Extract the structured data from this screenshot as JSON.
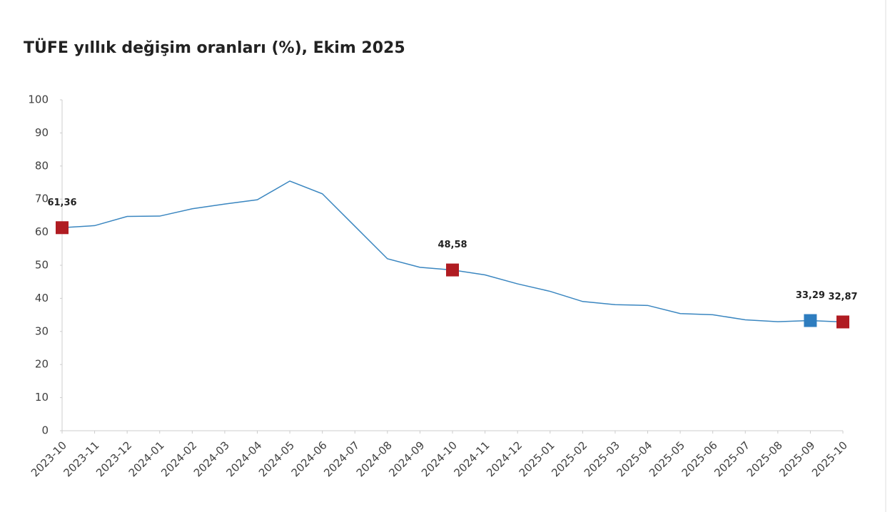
{
  "chart_data": {
    "type": "line",
    "title": "TÜFE yıllık değişim oranları (%), Ekim 2025",
    "categories": [
      "2023-10",
      "2023-11",
      "2023-12",
      "2024-01",
      "2024-02",
      "2024-03",
      "2024-04",
      "2024-05",
      "2024-06",
      "2024-07",
      "2024-08",
      "2024-09",
      "2024-10",
      "2024-11",
      "2024-12",
      "2025-01",
      "2025-02",
      "2025-03",
      "2025-04",
      "2025-05",
      "2025-06",
      "2025-07",
      "2025-08",
      "2025-09",
      "2025-10"
    ],
    "values": [
      61.36,
      61.98,
      64.77,
      64.86,
      67.07,
      68.5,
      69.8,
      75.45,
      71.6,
      61.78,
      51.97,
      49.38,
      48.58,
      47.09,
      44.38,
      42.12,
      39.05,
      38.1,
      37.86,
      35.41,
      35.05,
      33.52,
      32.95,
      33.29,
      32.87
    ],
    "value_labels": [
      "61,36",
      null,
      null,
      null,
      null,
      null,
      null,
      null,
      null,
      null,
      null,
      null,
      "48,58",
      null,
      null,
      null,
      null,
      null,
      null,
      null,
      null,
      null,
      null,
      "33,29",
      "32,87"
    ],
    "marker_colors": [
      "#b01c22",
      null,
      null,
      null,
      null,
      null,
      null,
      null,
      null,
      null,
      null,
      null,
      "#b01c22",
      null,
      null,
      null,
      null,
      null,
      null,
      null,
      null,
      null,
      null,
      "#2e7dbf",
      "#b01c22"
    ],
    "color": "#3a86c0",
    "ylim": [
      0,
      100
    ],
    "yticks": [
      0,
      10,
      20,
      30,
      40,
      50,
      60,
      70,
      80,
      90,
      100
    ]
  }
}
